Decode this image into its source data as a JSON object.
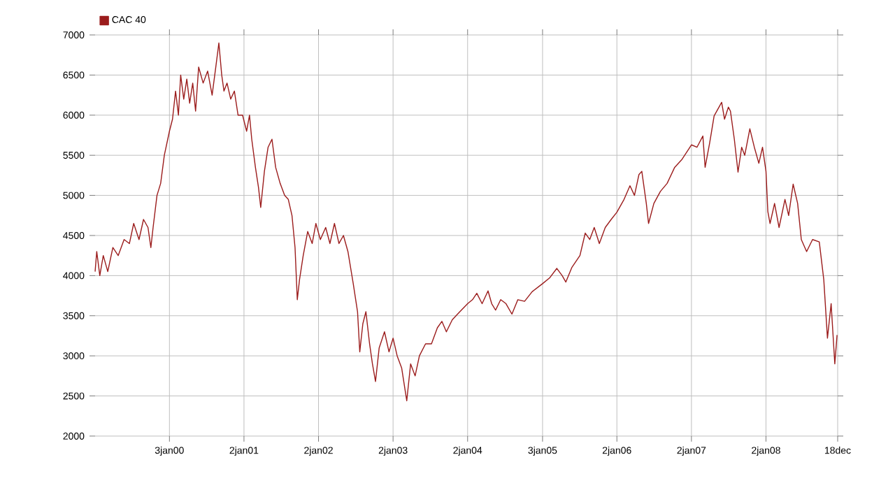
{
  "chart_data": {
    "type": "line",
    "x": [
      "1999-01-04",
      "1999-01-12",
      "1999-01-27",
      "1999-02-13",
      "1999-03-07",
      "1999-04-01",
      "1999-04-27",
      "1999-05-26",
      "1999-06-21",
      "1999-07-12",
      "1999-08-07",
      "1999-08-29",
      "1999-09-20",
      "1999-10-04",
      "1999-10-15",
      "1999-11-03",
      "1999-11-21",
      "1999-12-09",
      "2000-01-03",
      "2000-01-18",
      "2000-02-02",
      "2000-02-16",
      "2000-02-27",
      "2000-03-13",
      "2000-03-28",
      "2000-04-11",
      "2000-04-26",
      "2000-05-10",
      "2000-05-25",
      "2000-06-16",
      "2000-07-08",
      "2000-07-30",
      "2000-08-17",
      "2000-09-01",
      "2000-09-15",
      "2000-09-26",
      "2000-10-11",
      "2000-10-29",
      "2000-11-16",
      "2000-12-04",
      "2000-12-26",
      "2001-01-15",
      "2001-01-29",
      "2001-02-09",
      "2001-02-27",
      "2001-03-14",
      "2001-03-25",
      "2001-04-12",
      "2001-04-30",
      "2001-05-19",
      "2001-06-06",
      "2001-06-28",
      "2001-07-20",
      "2001-08-07",
      "2001-08-25",
      "2001-09-09",
      "2001-09-20",
      "2001-10-01",
      "2001-10-19",
      "2001-11-10",
      "2001-12-02",
      "2001-12-20",
      "2002-01-11",
      "2002-02-06",
      "2002-02-27",
      "2002-03-21",
      "2002-04-12",
      "2002-05-04",
      "2002-05-26",
      "2002-06-21",
      "2002-07-12",
      "2002-07-23",
      "2002-08-07",
      "2002-08-22",
      "2002-09-09",
      "2002-09-23",
      "2002-10-08",
      "2002-10-26",
      "2002-11-21",
      "2002-12-13",
      "2003-01-02",
      "2003-01-22",
      "2003-02-13",
      "2003-03-10",
      "2003-03-29",
      "2003-04-20",
      "2003-05-11",
      "2003-06-10",
      "2003-07-09",
      "2003-08-07",
      "2003-08-29",
      "2003-09-20",
      "2003-10-19",
      "2003-11-25",
      "2004-01-02",
      "2004-01-26",
      "2004-02-16",
      "2004-03-13",
      "2004-04-11",
      "2004-04-29",
      "2004-05-18",
      "2004-06-12",
      "2004-07-08",
      "2004-08-06",
      "2004-09-04",
      "2004-10-07",
      "2004-11-13",
      "2005-01-03",
      "2005-02-06",
      "2005-03-14",
      "2005-04-09",
      "2005-04-27",
      "2005-05-26",
      "2005-07-05",
      "2005-07-31",
      "2005-08-22",
      "2005-09-13",
      "2005-10-08",
      "2005-11-06",
      "2005-12-05",
      "2006-01-02",
      "2006-02-06",
      "2006-03-07",
      "2006-03-29",
      "2006-04-20",
      "2006-05-04",
      "2006-05-26",
      "2006-06-06",
      "2006-07-02",
      "2006-08-03",
      "2006-09-05",
      "2006-10-12",
      "2006-11-17",
      "2007-01-02",
      "2007-01-29",
      "2007-02-27",
      "2007-03-10",
      "2007-04-01",
      "2007-04-23",
      "2007-05-30",
      "2007-06-13",
      "2007-07-02",
      "2007-07-12",
      "2007-07-31",
      "2007-08-18",
      "2007-09-05",
      "2007-09-20",
      "2007-10-15",
      "2007-11-06",
      "2007-11-28",
      "2007-12-16",
      "2008-01-02",
      "2008-01-11",
      "2008-01-22",
      "2008-02-13",
      "2008-03-06",
      "2008-04-04",
      "2008-04-22",
      "2008-05-14",
      "2008-06-05",
      "2008-06-23",
      "2008-07-19",
      "2008-08-17",
      "2008-09-19",
      "2008-10-11",
      "2008-10-29",
      "2008-11-16",
      "2008-12-04",
      "2008-12-15"
    ],
    "series": [
      {
        "name": "CAC 40",
        "color": "#9b1c1c",
        "values": [
          4050,
          4300,
          4000,
          4250,
          4050,
          4350,
          4250,
          4450,
          4400,
          4650,
          4450,
          4700,
          4600,
          4350,
          4600,
          5000,
          5150,
          5500,
          5800,
          5950,
          6300,
          6000,
          6500,
          6200,
          6450,
          6150,
          6400,
          6050,
          6600,
          6400,
          6550,
          6250,
          6600,
          6900,
          6500,
          6300,
          6400,
          6200,
          6300,
          6000,
          6000,
          5800,
          6000,
          5700,
          5350,
          5100,
          4850,
          5300,
          5600,
          5700,
          5350,
          5150,
          5000,
          4950,
          4750,
          4350,
          3700,
          3950,
          4250,
          4550,
          4400,
          4650,
          4450,
          4600,
          4400,
          4650,
          4400,
          4500,
          4300,
          3900,
          3550,
          3050,
          3400,
          3550,
          3150,
          2900,
          2680,
          3100,
          3300,
          3050,
          3220,
          3000,
          2850,
          2440,
          2900,
          2750,
          3000,
          3150,
          3150,
          3350,
          3430,
          3300,
          3450,
          3550,
          3650,
          3700,
          3780,
          3650,
          3810,
          3650,
          3570,
          3700,
          3650,
          3520,
          3700,
          3680,
          3800,
          3900,
          3970,
          4090,
          4000,
          3920,
          4100,
          4250,
          4530,
          4450,
          4600,
          4400,
          4600,
          4700,
          4790,
          4950,
          5120,
          5000,
          5260,
          5300,
          4900,
          4650,
          4900,
          5050,
          5150,
          5350,
          5450,
          5630,
          5600,
          5740,
          5350,
          5650,
          5990,
          6160,
          5950,
          6100,
          6050,
          5700,
          5290,
          5600,
          5500,
          5830,
          5600,
          5400,
          5600,
          5300,
          4800,
          4650,
          4900,
          4600,
          4950,
          4750,
          5140,
          4900,
          4450,
          4300,
          4450,
          4420,
          3950,
          3220,
          3650,
          2900,
          3260
        ]
      }
    ],
    "xlim": [
      "1999-01-04",
      "2008-12-18"
    ],
    "xticks": [
      {
        "value": "2000-01-03",
        "label": "3jan00"
      },
      {
        "value": "2001-01-02",
        "label": "2jan01"
      },
      {
        "value": "2002-01-02",
        "label": "2jan02"
      },
      {
        "value": "2003-01-02",
        "label": "2jan03"
      },
      {
        "value": "2004-01-02",
        "label": "2jan04"
      },
      {
        "value": "2005-01-03",
        "label": "3jan05"
      },
      {
        "value": "2006-01-02",
        "label": "2jan06"
      },
      {
        "value": "2007-01-02",
        "label": "2jan07"
      },
      {
        "value": "2008-01-02",
        "label": "2jan08"
      },
      {
        "value": "2008-12-18",
        "label": "18dec"
      }
    ],
    "ylim": [
      2000,
      7000
    ],
    "yticks": [
      2000,
      2500,
      3000,
      3500,
      4000,
      4500,
      5000,
      5500,
      6000,
      6500,
      7000
    ],
    "grid": true,
    "legend": "top left"
  }
}
